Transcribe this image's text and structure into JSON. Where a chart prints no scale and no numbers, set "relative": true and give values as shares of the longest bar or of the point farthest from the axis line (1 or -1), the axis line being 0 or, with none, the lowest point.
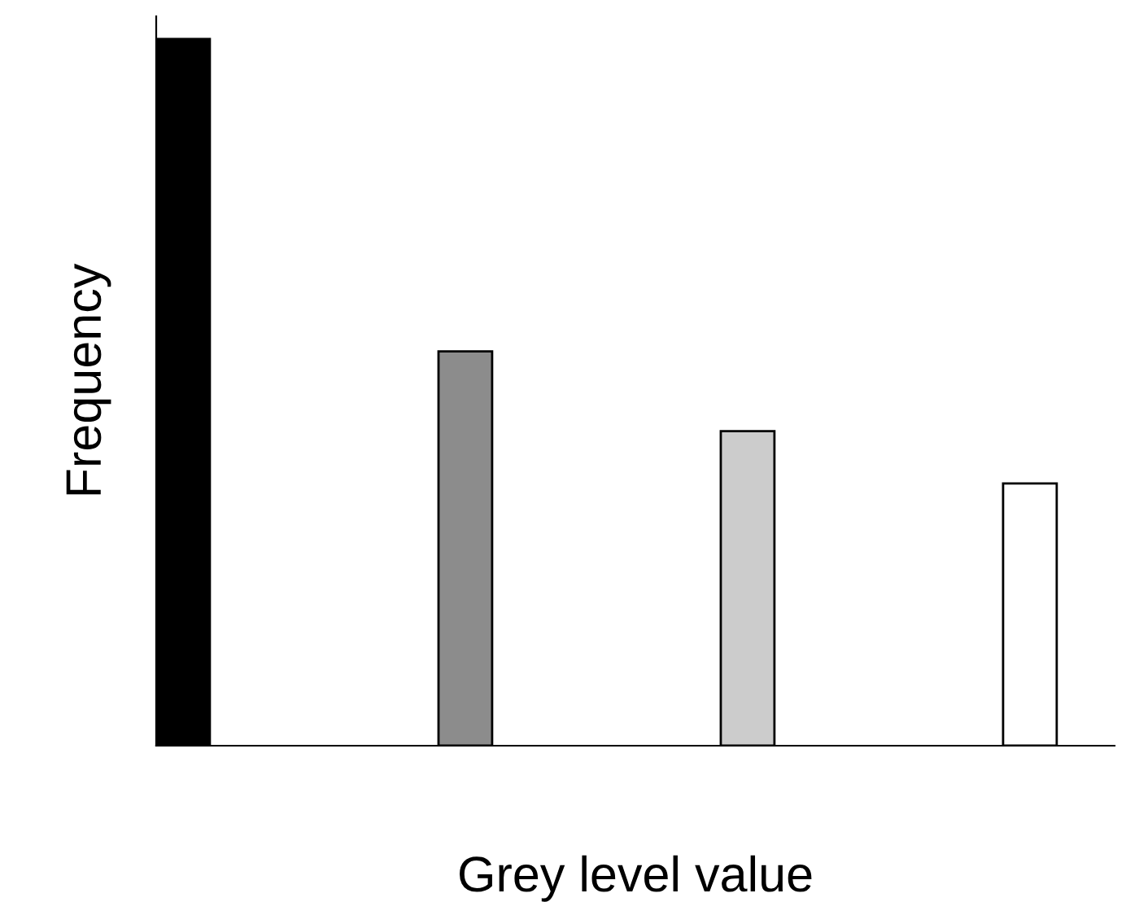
{
  "chart_data": {
    "type": "bar",
    "xlabel": "Grey level value",
    "ylabel": "Frequency",
    "relative": true,
    "categories": [
      null,
      null,
      null,
      null
    ],
    "values": [
      1,
      0.558,
      0.445,
      0.371
    ],
    "colors": [
      "#000000",
      "#8c8c8c",
      "#cccccc",
      "#ffffff"
    ],
    "grid": false,
    "legend": false
  }
}
